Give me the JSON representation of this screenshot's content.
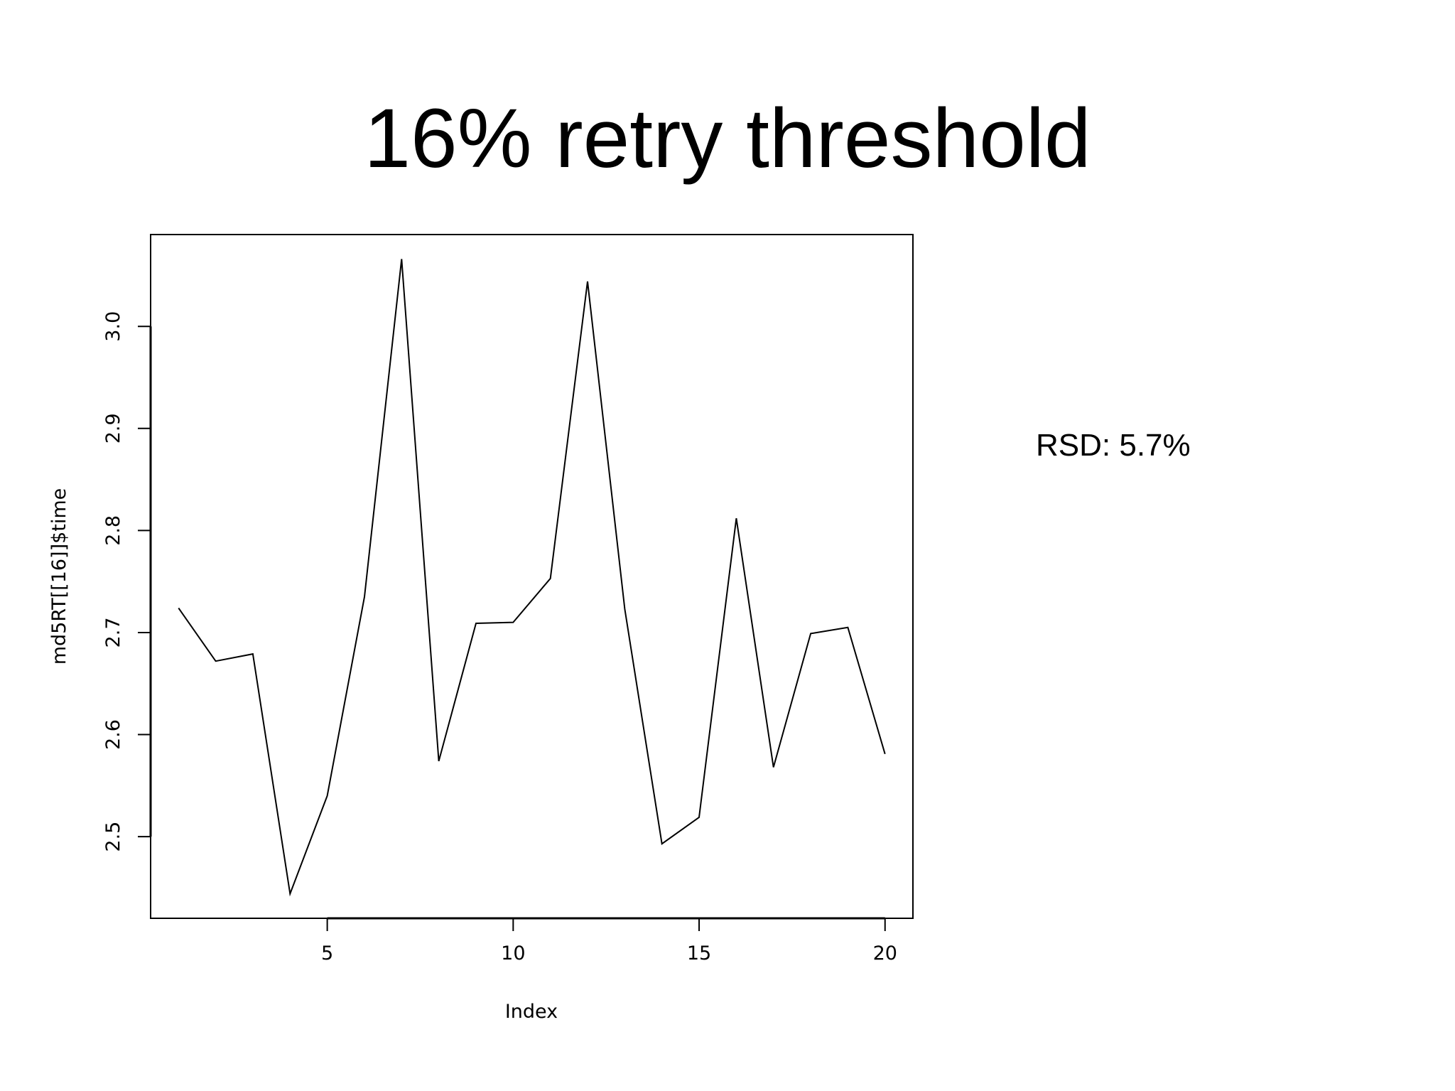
{
  "slide": {
    "title": "16% retry threshold",
    "note": "RSD: 5.7%"
  },
  "chart_data": {
    "type": "line",
    "title": "",
    "xlabel": "Index",
    "ylabel": "md5RT[[16]]$time",
    "x": [
      1,
      2,
      3,
      4,
      5,
      6,
      7,
      8,
      9,
      10,
      11,
      12,
      13,
      14,
      15,
      16,
      17,
      18,
      19,
      20
    ],
    "series": [
      {
        "values": [
          2.724,
          2.672,
          2.679,
          2.444,
          2.54,
          2.735,
          3.066,
          2.574,
          2.709,
          2.71,
          2.753,
          3.044,
          2.723,
          2.493,
          2.519,
          2.812,
          2.568,
          2.699,
          2.705,
          2.581
        ]
      }
    ],
    "xlim": [
      0.25,
      20.75
    ],
    "ylim": [
      2.42,
      3.09
    ],
    "xticks": [
      "5",
      "10",
      "15",
      "20"
    ],
    "yticks": [
      "2.5",
      "2.6",
      "2.7",
      "2.8",
      "2.9",
      "3.0"
    ],
    "grid": false,
    "line_color": "#000000"
  }
}
